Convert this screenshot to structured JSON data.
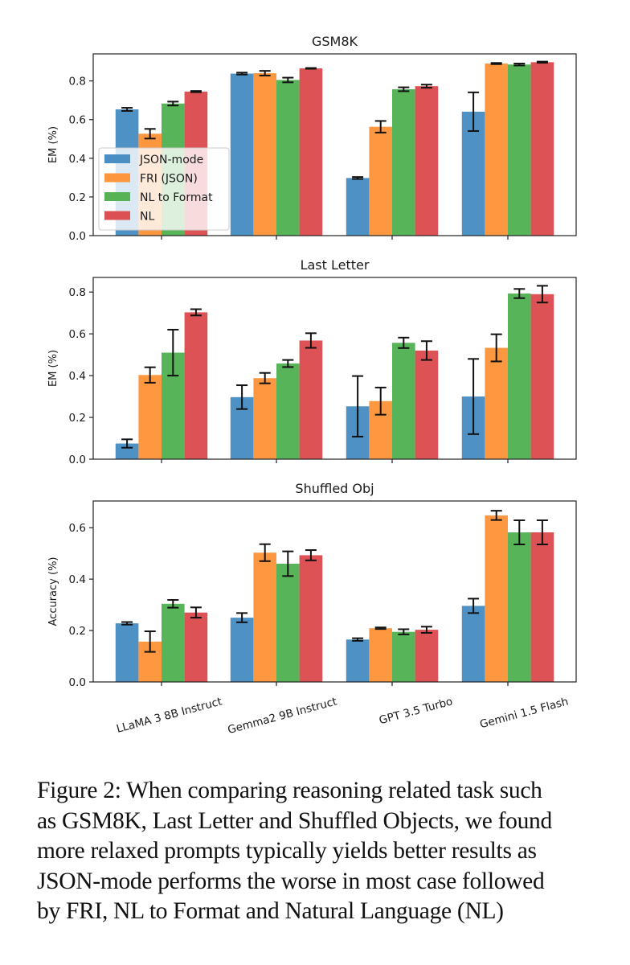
{
  "chart_data": [
    {
      "type": "bar",
      "title": "GSM8K",
      "xlabel": "",
      "ylabel": "EM (%)",
      "ylim": [
        0,
        0.94
      ],
      "yticks": [
        "0.0",
        "0.2",
        "0.4",
        "0.6",
        "0.8"
      ],
      "grid": false,
      "legend": "center-left",
      "categories": [
        "LLaMA 3 8B Instruct",
        "Gemma2 9B Instruct",
        "GPT 3.5 Turbo",
        "Gemini 1.5 Flash"
      ],
      "series": [
        {
          "name": "JSON-mode",
          "color": "#4a8fc4",
          "values": [
            0.653,
            0.838,
            0.298,
            0.641
          ],
          "errors": [
            0.008,
            0.005,
            0.005,
            0.1
          ]
        },
        {
          "name": "FRI (JSON)",
          "color": "#fd963c",
          "values": [
            0.527,
            0.84,
            0.563,
            0.89
          ],
          "errors": [
            0.025,
            0.012,
            0.03,
            0.003
          ]
        },
        {
          "name": "NL to Format",
          "color": "#55b355",
          "values": [
            0.683,
            0.805,
            0.757,
            0.885
          ],
          "errors": [
            0.01,
            0.012,
            0.01,
            0.005
          ]
        },
        {
          "name": "NL",
          "color": "#dc4f52",
          "values": [
            0.745,
            0.865,
            0.773,
            0.897
          ],
          "errors": [
            0.003,
            0.002,
            0.008,
            0.003
          ]
        }
      ]
    },
    {
      "type": "bar",
      "title": "Last Letter",
      "xlabel": "",
      "ylabel": "EM (%)",
      "ylim": [
        0,
        0.87
      ],
      "yticks": [
        "0.0",
        "0.2",
        "0.4",
        "0.6",
        "0.8"
      ],
      "grid": false,
      "categories": [
        "LLaMA 3 8B Instruct",
        "Gemma2 9B Instruct",
        "GPT 3.5 Turbo",
        "Gemini 1.5 Flash"
      ],
      "series": [
        {
          "name": "JSON-mode",
          "color": "#4a8fc4",
          "values": [
            0.075,
            0.297,
            0.253,
            0.3
          ],
          "errors": [
            0.02,
            0.057,
            0.145,
            0.18
          ]
        },
        {
          "name": "FRI (JSON)",
          "color": "#fd963c",
          "values": [
            0.403,
            0.388,
            0.278,
            0.533
          ],
          "errors": [
            0.037,
            0.025,
            0.065,
            0.065
          ]
        },
        {
          "name": "NL to Format",
          "color": "#55b355",
          "values": [
            0.51,
            0.458,
            0.557,
            0.793
          ],
          "errors": [
            0.11,
            0.017,
            0.025,
            0.022
          ]
        },
        {
          "name": "NL",
          "color": "#dc4f52",
          "values": [
            0.703,
            0.568,
            0.52,
            0.79
          ],
          "errors": [
            0.015,
            0.035,
            0.045,
            0.04
          ]
        }
      ]
    },
    {
      "type": "bar",
      "title": "Shuffled Obj",
      "xlabel": "",
      "ylabel": "Accuracy (%)",
      "ylim": [
        0,
        0.704
      ],
      "yticks": [
        "0.0",
        "0.2",
        "0.4",
        "0.6"
      ],
      "grid": false,
      "categories": [
        "LLaMA 3 8B Instruct",
        "Gemma2 9B Instruct",
        "GPT 3.5 Turbo",
        "Gemini 1.5 Flash"
      ],
      "series": [
        {
          "name": "JSON-mode",
          "color": "#4a8fc4",
          "values": [
            0.228,
            0.25,
            0.165,
            0.296
          ],
          "errors": [
            0.005,
            0.018,
            0.005,
            0.028
          ]
        },
        {
          "name": "FRI (JSON)",
          "color": "#fd963c",
          "values": [
            0.157,
            0.503,
            0.209,
            0.648
          ],
          "errors": [
            0.04,
            0.033,
            0.003,
            0.018
          ]
        },
        {
          "name": "NL to Format",
          "color": "#55b355",
          "values": [
            0.304,
            0.46,
            0.195,
            0.582
          ],
          "errors": [
            0.015,
            0.048,
            0.01,
            0.047
          ]
        },
        {
          "name": "NL",
          "color": "#dc4f52",
          "values": [
            0.27,
            0.493,
            0.203,
            0.582
          ],
          "errors": [
            0.02,
            0.02,
            0.012,
            0.047
          ]
        }
      ]
    }
  ],
  "caption": {
    "lines": [
      "Figure 2: When comparing reasoning related task such",
      "as GSM8K, Last Letter and Shuffled Objects, we found",
      "more relaxed prompts typically yields better results as",
      "JSON-mode performs the worse in most case followed",
      "by FRI, NL to Format and Natural Language (NL)"
    ]
  }
}
